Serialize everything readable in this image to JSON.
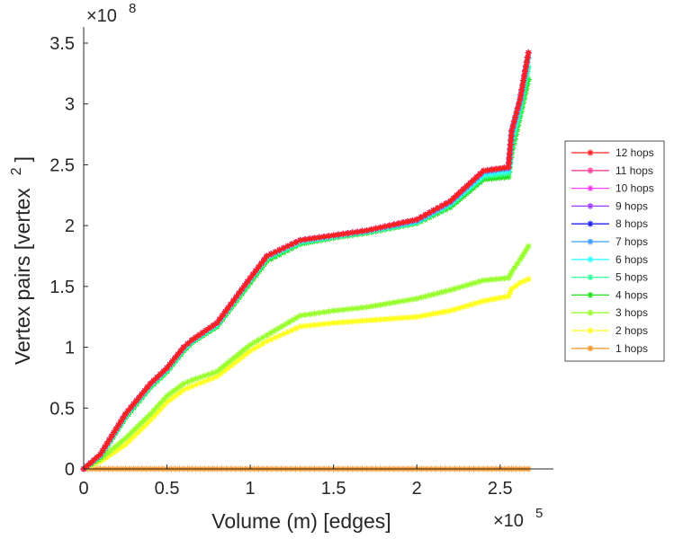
{
  "chart_data": {
    "type": "line",
    "title": "",
    "xlabel": "Volume (m) [edges]",
    "ylabel": "Vertex pairs [vertex",
    "ylabel_superscript": "2",
    "ylabel_close": "]",
    "x_multiplier": "×10",
    "x_exponent": "5",
    "y_multiplier": "×10",
    "y_exponent": "8",
    "xlim": [
      0,
      2.82
    ],
    "ylim": [
      0,
      3.5
    ],
    "xticks": [
      0,
      0.5,
      1,
      1.5,
      2,
      2.5
    ],
    "xtick_labels": [
      "0",
      "0.5",
      "1",
      "1.5",
      "2",
      "2.5"
    ],
    "yticks": [
      0,
      0.5,
      1,
      1.5,
      2,
      2.5,
      3,
      3.5
    ],
    "ytick_labels": [
      "0",
      "0.5",
      "1",
      "1.5",
      "2",
      "2.5",
      "3",
      "3.5"
    ],
    "legend_position": "right-outside",
    "x": [
      0,
      0.1,
      0.25,
      0.4,
      0.5,
      0.6,
      0.65,
      0.8,
      1.0,
      1.1,
      1.3,
      1.5,
      1.7,
      2.0,
      2.2,
      2.4,
      2.55,
      2.57,
      2.62,
      2.67
    ],
    "series": [
      {
        "name": "12 hops",
        "color": "#ff2020",
        "values": [
          0,
          0.12,
          0.45,
          0.7,
          0.83,
          1.0,
          1.06,
          1.2,
          1.57,
          1.75,
          1.88,
          1.92,
          1.96,
          2.05,
          2.2,
          2.45,
          2.48,
          2.78,
          3.04,
          3.42
        ]
      },
      {
        "name": "11 hops",
        "color": "#ff3c9a",
        "values": [
          0,
          0.12,
          0.45,
          0.7,
          0.83,
          1.0,
          1.06,
          1.2,
          1.57,
          1.75,
          1.88,
          1.92,
          1.96,
          2.05,
          2.2,
          2.45,
          2.48,
          2.78,
          3.04,
          3.42
        ]
      },
      {
        "name": "10 hops",
        "color": "#ff40ff",
        "values": [
          0,
          0.12,
          0.45,
          0.7,
          0.83,
          1.0,
          1.06,
          1.2,
          1.57,
          1.75,
          1.88,
          1.92,
          1.96,
          2.05,
          2.2,
          2.45,
          2.48,
          2.78,
          3.04,
          3.42
        ]
      },
      {
        "name": "9 hops",
        "color": "#9a3cff",
        "values": [
          0,
          0.12,
          0.45,
          0.7,
          0.83,
          1.0,
          1.06,
          1.2,
          1.57,
          1.75,
          1.88,
          1.92,
          1.96,
          2.05,
          2.2,
          2.45,
          2.48,
          2.78,
          3.04,
          3.42
        ]
      },
      {
        "name": "8 hops",
        "color": "#2020ff",
        "values": [
          0,
          0.12,
          0.45,
          0.7,
          0.83,
          1.0,
          1.06,
          1.2,
          1.57,
          1.75,
          1.88,
          1.92,
          1.96,
          2.05,
          2.2,
          2.45,
          2.48,
          2.78,
          3.04,
          3.42
        ]
      },
      {
        "name": "7 hops",
        "color": "#3c9aff",
        "values": [
          0,
          0.12,
          0.45,
          0.7,
          0.83,
          1.0,
          1.06,
          1.2,
          1.57,
          1.75,
          1.88,
          1.92,
          1.96,
          2.04,
          2.19,
          2.44,
          2.47,
          2.77,
          3.03,
          3.42
        ]
      },
      {
        "name": "6 hops",
        "color": "#30ffff",
        "values": [
          0,
          0.11,
          0.44,
          0.69,
          0.82,
          0.99,
          1.05,
          1.19,
          1.56,
          1.74,
          1.87,
          1.91,
          1.95,
          2.03,
          2.18,
          2.42,
          2.45,
          2.72,
          3.0,
          3.38
        ]
      },
      {
        "name": "5 hops",
        "color": "#30ff9a",
        "values": [
          0,
          0.11,
          0.43,
          0.68,
          0.81,
          0.98,
          1.05,
          1.18,
          1.55,
          1.73,
          1.86,
          1.91,
          1.95,
          2.03,
          2.17,
          2.4,
          2.43,
          2.66,
          2.95,
          3.3
        ]
      },
      {
        "name": "4 hops",
        "color": "#20e020",
        "values": [
          0,
          0.1,
          0.42,
          0.67,
          0.8,
          0.97,
          1.04,
          1.17,
          1.53,
          1.71,
          1.85,
          1.9,
          1.94,
          2.02,
          2.15,
          2.38,
          2.4,
          2.6,
          2.9,
          3.2
        ]
      },
      {
        "name": "3 hops",
        "color": "#9aff30",
        "values": [
          0,
          0.08,
          0.25,
          0.45,
          0.6,
          0.7,
          0.73,
          0.8,
          1.02,
          1.1,
          1.26,
          1.3,
          1.33,
          1.4,
          1.47,
          1.55,
          1.57,
          1.62,
          1.72,
          1.83
        ]
      },
      {
        "name": "2 hops",
        "color": "#ffff20",
        "values": [
          0,
          0.06,
          0.2,
          0.4,
          0.55,
          0.65,
          0.68,
          0.76,
          0.97,
          1.05,
          1.17,
          1.2,
          1.22,
          1.25,
          1.3,
          1.38,
          1.42,
          1.48,
          1.53,
          1.56
        ]
      },
      {
        "name": "1 hops",
        "color": "#ff9a30",
        "values": [
          0,
          0,
          0,
          0,
          0,
          0,
          0,
          0,
          0,
          0,
          0,
          0,
          0,
          0,
          0,
          0,
          0,
          0,
          0,
          0
        ]
      }
    ]
  }
}
